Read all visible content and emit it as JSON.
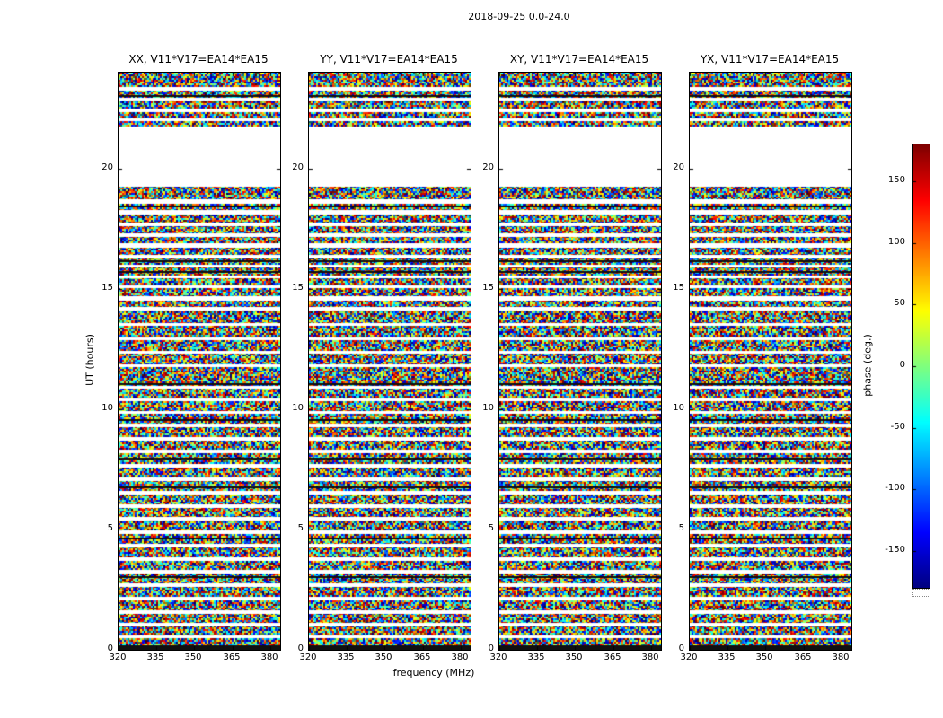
{
  "figure": {
    "suptitle": "2018-09-25 0.0-24.0"
  },
  "chart_data": {
    "type": "heatmap",
    "title": "2018-09-25 0.0-24.0",
    "panels": [
      {
        "label": "XX",
        "title": "XX, V11*V17=EA14*EA15"
      },
      {
        "label": "YY",
        "title": "YY, V11*V17=EA14*EA15"
      },
      {
        "label": "XY",
        "title": "XY, V11*V17=EA14*EA15"
      },
      {
        "label": "YX",
        "title": "YX, V11*V17=EA14*EA15"
      }
    ],
    "xlabel": "frequency (MHz)",
    "ylabel": "UT (hours)",
    "x_range": [
      320,
      384
    ],
    "x_ticks": [
      320,
      335,
      350,
      365,
      380
    ],
    "x_tick_labels": [
      "320",
      "335",
      "350",
      "365",
      "380"
    ],
    "y_range": [
      0,
      24
    ],
    "y_ticks": [
      0,
      5,
      10,
      15,
      20
    ],
    "y_tick_labels": [
      "0",
      "5",
      "10",
      "15",
      "20"
    ],
    "colorbar": {
      "label": "phase (deg.)",
      "range": [
        -180,
        180
      ],
      "tick_values": [
        150,
        100,
        50,
        0,
        -50,
        -100,
        -150
      ],
      "tick_labels": [
        "150",
        "100",
        "50",
        "0",
        "-50",
        "-100",
        "-150"
      ],
      "colormap": "jet"
    },
    "values_description": "uniformly random visibility phases (-180 to 180 deg) versus frequency and UT; white horizontal bands are flagged / missing time ranges, dark bands are near-zero-amplitude rows",
    "flagged_time_ranges_ut": [
      [
        19.25,
        21.75
      ],
      [
        23.28,
        23.42
      ],
      [
        22.82,
        22.95
      ],
      [
        22.38,
        22.52
      ],
      [
        21.95,
        22.08
      ],
      [
        18.55,
        18.72
      ],
      [
        18.1,
        18.28
      ],
      [
        17.62,
        17.78
      ],
      [
        17.18,
        17.32
      ],
      [
        16.72,
        16.92
      ],
      [
        16.28,
        16.42
      ],
      [
        15.88,
        16.0
      ],
      [
        15.45,
        15.58
      ],
      [
        15.02,
        15.15
      ],
      [
        14.55,
        14.72
      ],
      [
        14.1,
        14.25
      ],
      [
        13.45,
        13.58
      ],
      [
        12.85,
        12.98
      ],
      [
        12.3,
        12.42
      ],
      [
        11.75,
        11.88
      ],
      [
        10.85,
        10.98
      ],
      [
        10.32,
        10.45
      ],
      [
        9.8,
        9.93
      ],
      [
        9.28,
        9.42
      ],
      [
        8.72,
        8.86
      ],
      [
        8.18,
        8.32
      ],
      [
        7.58,
        7.72
      ],
      [
        7.02,
        7.16
      ],
      [
        6.48,
        6.62
      ],
      [
        5.92,
        6.06
      ],
      [
        5.38,
        5.52
      ],
      [
        4.82,
        4.96
      ],
      [
        4.28,
        4.42
      ],
      [
        3.72,
        3.86
      ],
      [
        3.18,
        3.32
      ],
      [
        2.62,
        2.78
      ],
      [
        2.08,
        2.22
      ],
      [
        1.52,
        1.66
      ],
      [
        0.98,
        1.12
      ],
      [
        0.45,
        0.58
      ]
    ],
    "dark_time_ranges_ut": [
      [
        23.0,
        23.07
      ],
      [
        18.42,
        18.48
      ],
      [
        16.12,
        16.19
      ],
      [
        15.68,
        15.74
      ],
      [
        11.02,
        11.1
      ],
      [
        9.55,
        9.61
      ],
      [
        7.9,
        7.97
      ],
      [
        6.75,
        6.81
      ],
      [
        4.6,
        4.66
      ],
      [
        3.0,
        3.06
      ],
      [
        0.0,
        0.18
      ]
    ]
  }
}
